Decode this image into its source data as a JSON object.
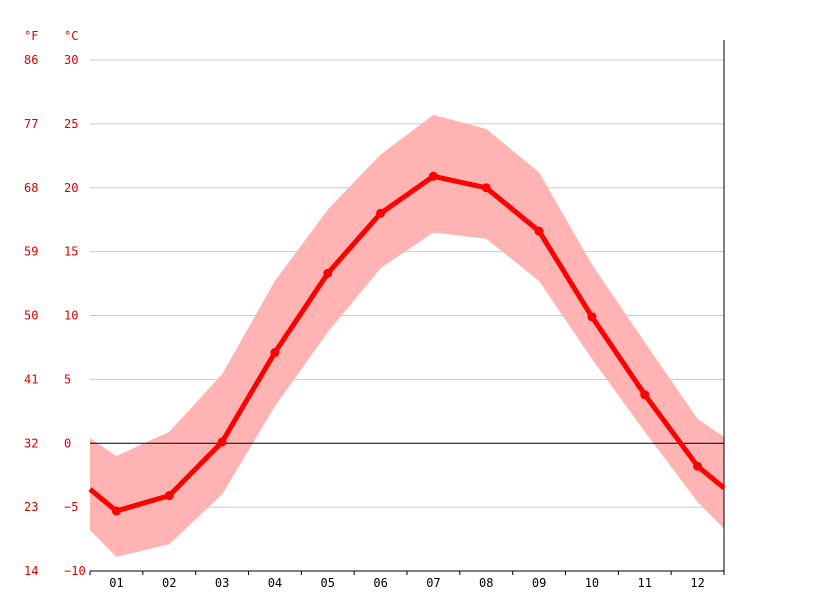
{
  "chart_data": {
    "type": "line",
    "units": {
      "fahrenheit": "°F",
      "celsius": "°C"
    },
    "y_ticks_celsius": [
      "30",
      "25",
      "20",
      "15",
      "10",
      "5",
      "0",
      "−5",
      "−10"
    ],
    "y_ticks_fahrenheit": [
      "86",
      "77",
      "68",
      "59",
      "50",
      "41",
      "32",
      "23",
      "14"
    ],
    "ylim": [
      -10,
      30
    ],
    "categories": [
      "01",
      "02",
      "03",
      "04",
      "05",
      "06",
      "07",
      "08",
      "09",
      "10",
      "11",
      "12"
    ],
    "series": [
      {
        "values": [
          -5.3,
          -4.1,
          0.1,
          7.1,
          13.3,
          18.0,
          20.9,
          20.0,
          16.6,
          9.9,
          3.8,
          -1.8
        ],
        "color": "#ff0000"
      }
    ],
    "band": {
      "upper": [
        -1.0,
        0.9,
        5.4,
        12.7,
        18.3,
        22.6,
        25.7,
        24.6,
        21.2,
        14.0,
        7.9,
        1.9
      ],
      "lower": [
        -8.9,
        -7.9,
        -4.0,
        2.9,
        8.7,
        13.7,
        16.5,
        16.0,
        12.7,
        6.6,
        0.9,
        -4.6
      ],
      "color": "#ffb3b3"
    },
    "edge_values": {
      "left": {
        "value": -3.6,
        "upper": 0.4,
        "lower": -6.8
      },
      "right": {
        "value": -3.5,
        "upper": 0.5,
        "lower": -6.7
      }
    },
    "grid": true,
    "zero_line": true
  }
}
